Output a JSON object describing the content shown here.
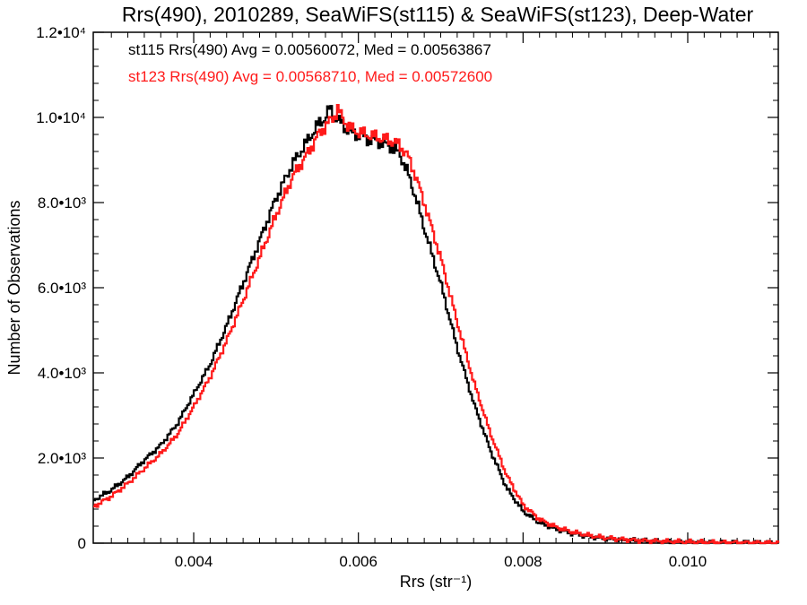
{
  "chart_data": {
    "type": "line",
    "step": true,
    "title": "Rrs(490), 2010289, SeaWiFS(st115) & SeaWiFS(st123), Deep-Water",
    "xlabel": "Rrs (str⁻¹)",
    "ylabel": "Number of Observations",
    "xlim": [
      0.00278,
      0.0111
    ],
    "ylim": [
      0,
      12000
    ],
    "x_ticks": [
      {
        "value": 0.004,
        "label": "0.004"
      },
      {
        "value": 0.006,
        "label": "0.006"
      },
      {
        "value": 0.008,
        "label": "0.008"
      },
      {
        "value": 0.01,
        "label": "0.010"
      }
    ],
    "y_ticks": [
      {
        "value": 0,
        "label": "0"
      },
      {
        "value": 2000,
        "label": "2.0•10³"
      },
      {
        "value": 4000,
        "label": "4.0•10³"
      },
      {
        "value": 6000,
        "label": "6.0•10³"
      },
      {
        "value": 8000,
        "label": "8.0•10³"
      },
      {
        "value": 10000,
        "label": "1.0•10⁴"
      },
      {
        "value": 12000,
        "label": "1.2•10⁴"
      }
    ],
    "grid": false,
    "series": [
      {
        "name": "st115",
        "color": "#000000",
        "annotation": "st115 Rrs(490) Avg = 0.00560072, Med = 0.00563867",
        "x": [
          0.00278,
          0.003,
          0.0032,
          0.0034,
          0.0036,
          0.0038,
          0.004,
          0.0042,
          0.0044,
          0.0046,
          0.0048,
          0.005,
          0.0052,
          0.0054,
          0.0055,
          0.0056,
          0.00565,
          0.0057,
          0.0058,
          0.0059,
          0.006,
          0.0061,
          0.0062,
          0.0063,
          0.0064,
          0.0065,
          0.0066,
          0.0067,
          0.0068,
          0.007,
          0.0072,
          0.0074,
          0.0076,
          0.0078,
          0.008,
          0.0082,
          0.0084,
          0.0086,
          0.0088,
          0.009,
          0.0092,
          0.0094,
          0.0096,
          0.0098,
          0.01,
          0.0102,
          0.0104,
          0.0106,
          0.0108,
          0.0111
        ],
        "y": [
          1000,
          1250,
          1550,
          1950,
          2300,
          2800,
          3500,
          4200,
          5100,
          6100,
          7100,
          8100,
          8900,
          9500,
          9800,
          10000,
          10200,
          10050,
          9850,
          9650,
          9600,
          9500,
          9450,
          9400,
          9300,
          9150,
          8700,
          8100,
          7400,
          6100,
          4600,
          3300,
          2200,
          1300,
          750,
          480,
          330,
          230,
          160,
          110,
          80,
          60,
          45,
          35,
          25,
          20,
          15,
          10,
          8,
          5
        ]
      },
      {
        "name": "st123",
        "color": "#ff1a1a",
        "annotation": "st123 Rrs(490) Avg = 0.00568710, Med = 0.00572600",
        "x": [
          0.00278,
          0.003,
          0.0032,
          0.0034,
          0.0036,
          0.0038,
          0.004,
          0.0042,
          0.0044,
          0.0046,
          0.0048,
          0.005,
          0.0052,
          0.0054,
          0.0055,
          0.0056,
          0.0057,
          0.00575,
          0.0058,
          0.0059,
          0.006,
          0.0061,
          0.0062,
          0.0063,
          0.0064,
          0.0065,
          0.0066,
          0.0067,
          0.0068,
          0.007,
          0.0072,
          0.0074,
          0.0076,
          0.0078,
          0.008,
          0.0082,
          0.0084,
          0.0086,
          0.0088,
          0.009,
          0.0092,
          0.0094,
          0.0096,
          0.0098,
          0.01,
          0.0102,
          0.0104,
          0.0106,
          0.0108,
          0.0111
        ],
        "y": [
          850,
          1100,
          1400,
          1750,
          2100,
          2550,
          3200,
          3900,
          4750,
          5700,
          6700,
          7700,
          8600,
          9200,
          9550,
          9800,
          10000,
          10200,
          10000,
          9750,
          9650,
          9600,
          9550,
          9500,
          9450,
          9350,
          9100,
          8600,
          8000,
          6700,
          5200,
          3800,
          2600,
          1600,
          900,
          560,
          380,
          260,
          180,
          125,
          90,
          65,
          50,
          38,
          28,
          22,
          16,
          11,
          8,
          5
        ]
      }
    ]
  }
}
